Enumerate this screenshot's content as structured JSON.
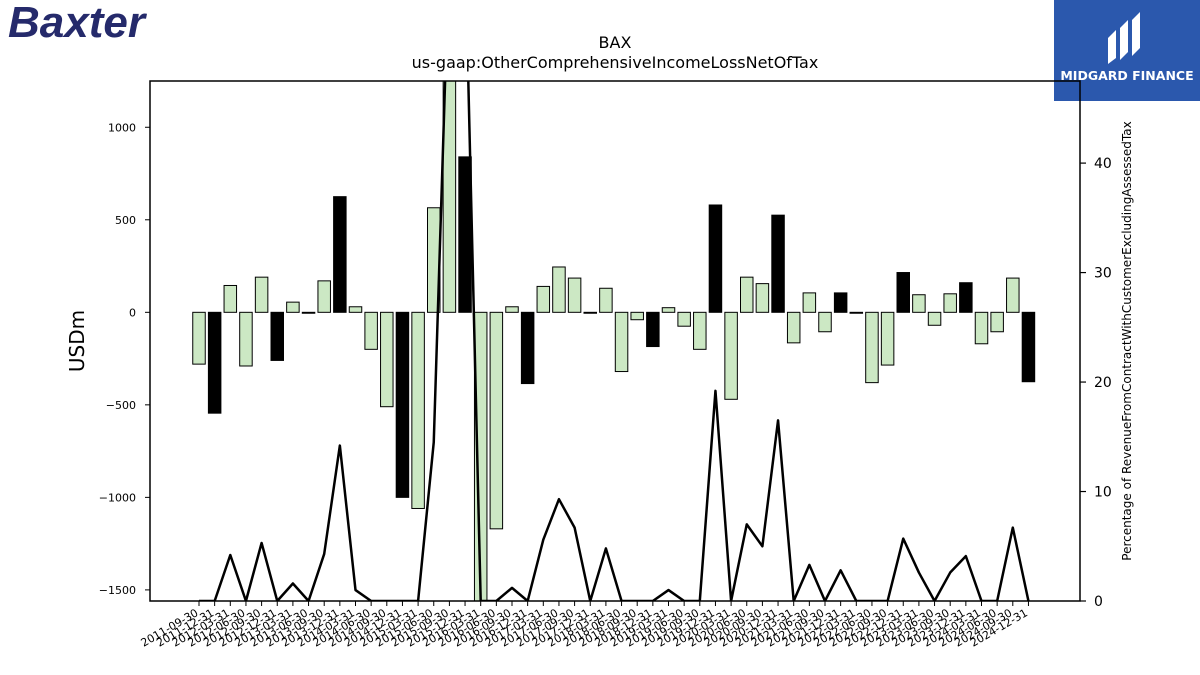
{
  "logos": {
    "company": "Baxter",
    "publisher": "MIDGARD FINANCE"
  },
  "chart_data": {
    "type": "bar",
    "title": "BAX",
    "subtitle": "us-gaap:OtherComprehensiveIncomeLossNetOfTax",
    "ylabel": "USDm",
    "y2label": "Percentage of RevenueFromContractWithCustomerExcludingAssessedTax",
    "ylim": [
      -1560,
      1250
    ],
    "y2lim": [
      0,
      47.5
    ],
    "yticks": [
      -1500,
      -1000,
      -500,
      0,
      500,
      1000
    ],
    "y2ticks": [
      0,
      10,
      20,
      30,
      40
    ],
    "ytick_labels": [
      "−1500",
      "−1000",
      "−500",
      "0",
      "500",
      "1000"
    ],
    "y2tick_labels": [
      "0",
      "10",
      "20",
      "30",
      "40"
    ],
    "colors": {
      "positive_quarter": "#cce8c4",
      "annual": "#000000",
      "line": "#000000"
    },
    "categories": [
      "2011-09-30",
      "2011-12-31",
      "2012-03-31",
      "2012-06-30",
      "2012-09-30",
      "2012-12-31",
      "2013-03-31",
      "2013-06-30",
      "2013-09-30",
      "2013-12-31",
      "2014-03-31",
      "2014-06-30",
      "2014-09-30",
      "2014-12-31",
      "2015-03-31",
      "2015-06-30",
      "2015-09-30",
      "2015-12-31",
      "2016-03-31",
      "2016-06-30",
      "2016-09-30",
      "2016-12-31",
      "2017-03-31",
      "2017-06-30",
      "2017-09-30",
      "2017-12-31",
      "2018-03-31",
      "2018-06-30",
      "2018-09-30",
      "2018-12-31",
      "2019-03-31",
      "2019-06-30",
      "2019-09-30",
      "2019-12-31",
      "2020-03-31",
      "2020-06-30",
      "2020-09-30",
      "2020-12-31",
      "2021-03-31",
      "2021-06-30",
      "2021-09-30",
      "2021-12-31",
      "2022-03-31",
      "2022-06-30",
      "2022-09-30",
      "2022-12-31",
      "2023-03-31",
      "2023-06-30",
      "2023-09-30",
      "2023-12-31",
      "2024-03-31",
      "2024-06-30",
      "2024-09-30",
      "2024-12-31"
    ],
    "xtick_labels": [
      "2011-09-30",
      "2011-12-31",
      "2012-03-31",
      "2012-06-30",
      "2012-09-30",
      "2012-12-31",
      "2013-03-31",
      "2013-06-30",
      "2013-09-30",
      "2013-12-31",
      "2014-03-31",
      "2014-06-30",
      "2014-09-30",
      "2014-12-31",
      "2015-03-31",
      "2015-06-30",
      "2015-09-30",
      "2015-12-31",
      "2016-03-31",
      "2016-06-30",
      "2016-09-30",
      "2016-12-31",
      "2017-03-31",
      "2017-06-30",
      "2017-09-30",
      "2017-12-31",
      "2018-03-31",
      "2018-06-30",
      "2018-09-30",
      "2018-12-31",
      "2019-03-31",
      "2019-06-30",
      "2019-09-30",
      "2019-12-31",
      "2020-03-31",
      "2020-06-30",
      "2020-09-30",
      "2020-12-31",
      "2021-03-31",
      "2021-06-30",
      "2021-09-30",
      "2021-12-31",
      "2022-03-31",
      "2022-06-30",
      "2022-09-30",
      "2022-12-31",
      "2023-03-31",
      "2023-06-30",
      "2023-09-30",
      "2023-12-31",
      "2024-03-31",
      "2024-06-30",
      "2024-09-30",
      "2024-12-31"
    ],
    "series": [
      {
        "kind": "bar",
        "values": [
          -280,
          -545,
          145,
          -290,
          190,
          -260,
          55,
          -5,
          170,
          625,
          30,
          -200,
          -510,
          -1000,
          -1060,
          565,
          1400,
          840,
          -1560,
          -1170,
          30,
          -385,
          140,
          245,
          185,
          -5,
          130,
          -320,
          -40,
          -185,
          25,
          -75,
          -200,
          580,
          -470,
          190,
          155,
          525,
          -165,
          105,
          -105,
          105,
          -5,
          -380,
          -285,
          215,
          95,
          -70,
          100,
          160,
          -170,
          -105,
          185,
          -375
        ],
        "annual": [
          false,
          true,
          false,
          false,
          false,
          true,
          false,
          false,
          false,
          true,
          false,
          false,
          false,
          true,
          false,
          false,
          false,
          true,
          false,
          false,
          false,
          true,
          false,
          false,
          false,
          true,
          false,
          false,
          false,
          true,
          false,
          false,
          false,
          true,
          false,
          false,
          false,
          true,
          false,
          false,
          false,
          true,
          false,
          false,
          false,
          true,
          false,
          false,
          false,
          true,
          false,
          false,
          false,
          true
        ]
      },
      {
        "kind": "line",
        "axis": "right",
        "values": [
          0,
          0,
          4.2,
          0,
          5.3,
          0,
          1.6,
          0,
          4.3,
          14.2,
          1.0,
          0,
          0,
          0,
          0,
          14.5,
          60,
          60,
          0,
          0,
          1.2,
          0,
          5.6,
          9.3,
          6.7,
          0,
          4.8,
          0,
          0,
          0,
          1.0,
          0,
          0,
          19.2,
          0,
          7.0,
          5.0,
          16.5,
          0,
          3.3,
          0,
          2.8,
          0,
          0,
          0,
          5.7,
          2.6,
          0,
          2.6,
          4.1,
          0,
          0,
          6.7,
          0
        ]
      }
    ]
  }
}
